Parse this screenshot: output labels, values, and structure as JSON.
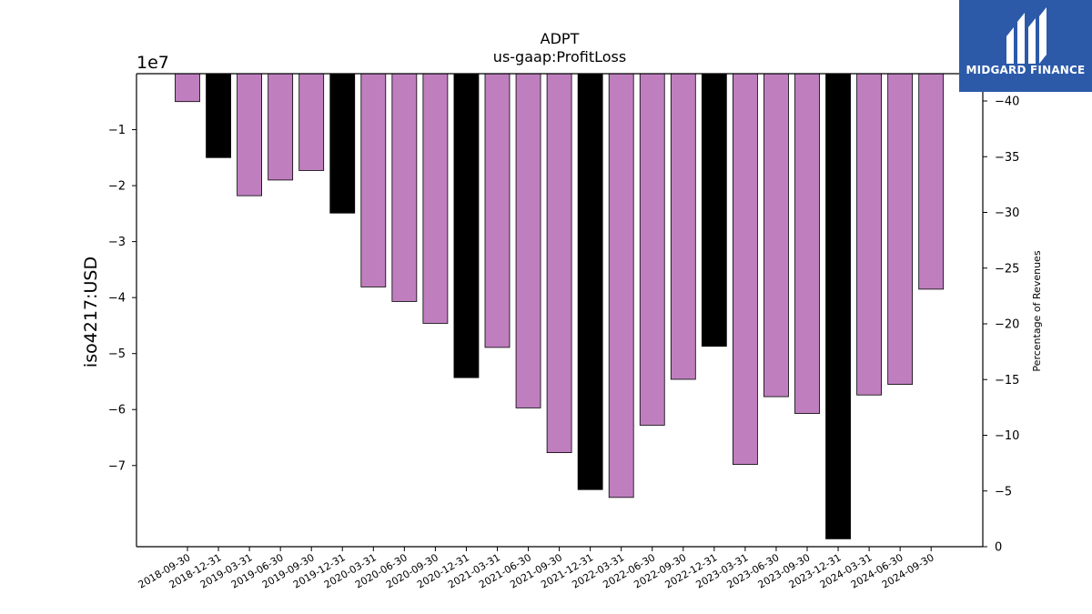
{
  "chart_data": {
    "type": "bar",
    "title": "ADPT",
    "subtitle": "us-gaap:ProfitLoss",
    "ylabel": "iso4217:USD",
    "y_offset_label": "1e7",
    "y2label": "Percentage of Revenues",
    "categories": [
      "2018-09-30",
      "2018-12-31",
      "2019-03-31",
      "2019-06-30",
      "2019-09-30",
      "2019-12-31",
      "2020-03-31",
      "2020-06-30",
      "2020-09-30",
      "2020-12-31",
      "2021-03-31",
      "2021-06-30",
      "2021-09-30",
      "2021-12-31",
      "2022-03-31",
      "2022-06-30",
      "2022-09-30",
      "2022-12-31",
      "2023-03-31",
      "2023-06-30",
      "2023-09-30",
      "2023-12-31",
      "2024-03-31",
      "2024-06-30",
      "2024-09-30"
    ],
    "values": [
      -4990000,
      -14990000,
      -21800000,
      -19000000,
      -17300000,
      -24900000,
      -38100000,
      -40700000,
      -44600000,
      -54300000,
      -48900000,
      -59700000,
      -67700000,
      -74300000,
      -75700000,
      -62800000,
      -54600000,
      -48700000,
      -69800000,
      -57700000,
      -60700000,
      -83100000,
      -57400000,
      -55500000,
      -38500000
    ],
    "annual_flags": [
      false,
      true,
      false,
      false,
      false,
      true,
      false,
      false,
      false,
      true,
      false,
      false,
      false,
      true,
      false,
      false,
      false,
      true,
      false,
      false,
      false,
      true,
      false,
      false,
      false
    ],
    "colors": {
      "quarterly": "#bf7fbf",
      "annual": "#000000",
      "edge": "#000000"
    },
    "ylim": [
      -84500000,
      0
    ],
    "yticks": [
      -70000000,
      -60000000,
      -50000000,
      -40000000,
      -30000000,
      -20000000,
      -10000000
    ],
    "ytick_labels": [
      "−7",
      "−6",
      "−5",
      "−4",
      "−3",
      "−2",
      "−1"
    ],
    "y2lim": [
      0,
      40
    ],
    "y2ticks": [
      0,
      5,
      10,
      15,
      20,
      25,
      30,
      35,
      40
    ],
    "y2tick_labels": [
      "0",
      "−5",
      "−10",
      "−15",
      "−20",
      "−25",
      "−30",
      "−35",
      "−40"
    ]
  },
  "logo": {
    "text": "MIDGARD FINANCE",
    "bg_color": "#2c5aa9"
  }
}
